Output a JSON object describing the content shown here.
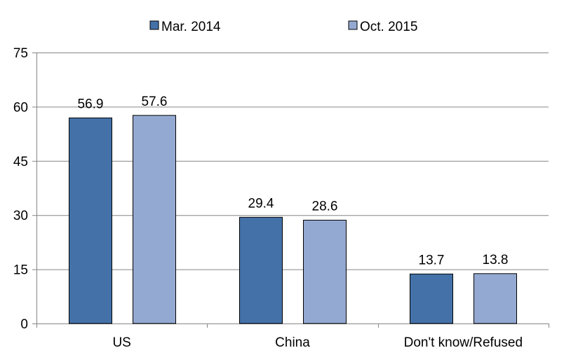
{
  "chart_data": {
    "type": "bar",
    "title": "",
    "xlabel": "",
    "ylabel": "",
    "categories": [
      "US",
      "China",
      "Don't know/Refused"
    ],
    "series": [
      {
        "name": "Mar. 2014",
        "values": [
          56.9,
          29.4,
          13.7
        ],
        "color": "#4471A8"
      },
      {
        "name": "Oct. 2015",
        "values": [
          57.6,
          28.6,
          13.8
        ],
        "color": "#94A9D1"
      }
    ],
    "data_labels": [
      [
        "56.9",
        "29.4",
        "13.7"
      ],
      [
        "57.6",
        "28.6",
        "13.8"
      ]
    ],
    "ylim": [
      0,
      75
    ],
    "yticks": [
      0,
      15,
      30,
      45,
      60,
      75
    ],
    "ytick_labels": [
      "0",
      "15",
      "30",
      "45",
      "60",
      "75"
    ],
    "grid": true,
    "legend_position": "top"
  }
}
